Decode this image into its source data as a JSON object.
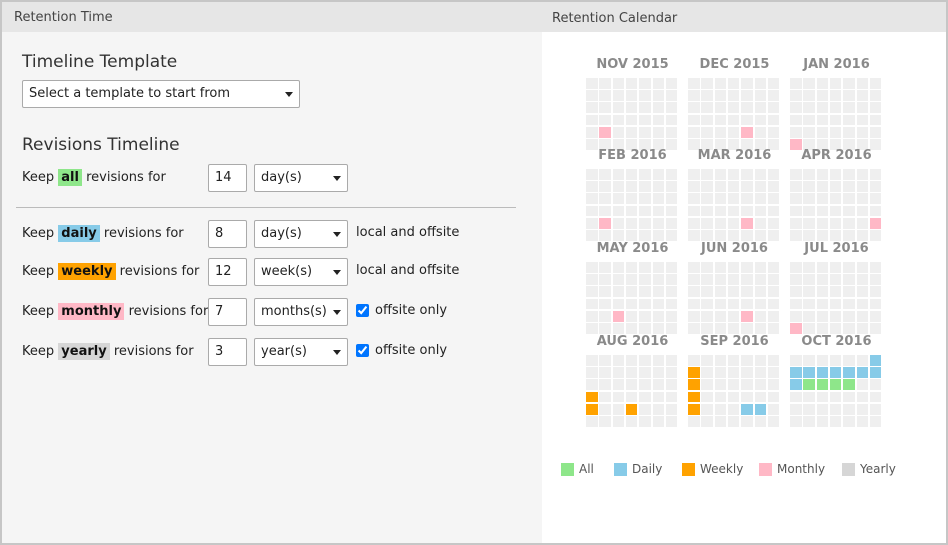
{
  "left_panel": {
    "title": "Retention Time",
    "template_heading": "Timeline Template",
    "template_select": "Select a template to start from",
    "revisions_heading": "Revisions Timeline",
    "rows": [
      {
        "prefix": "Keep",
        "tag": "all",
        "tag_color": "#8ee68a",
        "suffix": "revisions for",
        "amount": 14,
        "unit": "day(s)"
      },
      {
        "prefix": "Keep",
        "tag": "daily",
        "tag_color": "#87cbe8",
        "suffix": "revisions for",
        "amount": 8,
        "unit": "day(s)",
        "scope": "local and offsite",
        "checkbox": false
      },
      {
        "prefix": "Keep",
        "tag": "weekly",
        "tag_color": "#ffa200",
        "suffix": "revisions for",
        "amount": 12,
        "unit": "week(s)",
        "scope": "local and offsite",
        "checkbox": false
      },
      {
        "prefix": "Keep",
        "tag": "monthly",
        "tag_color": "#ffb8c6",
        "suffix": "revisions for",
        "amount": 7,
        "unit": "months(s)",
        "scope": "offsite only",
        "checkbox": true
      },
      {
        "prefix": "Keep",
        "tag": "yearly",
        "tag_color": "#d6d6d6",
        "suffix": "revisions for",
        "amount": 3,
        "unit": "year(s)",
        "scope": "offsite only",
        "checkbox": true
      }
    ]
  },
  "right_panel": {
    "title": "Retention Calendar",
    "months": [
      {
        "label": "NOV 2015",
        "marked": [
          {
            "day": 30,
            "color": "#ffb8c6"
          }
        ]
      },
      {
        "label": "DEC 2015",
        "marked": [
          {
            "day": 31,
            "color": "#ffb8c6"
          }
        ]
      },
      {
        "label": "JAN 2016",
        "marked": [
          {
            "day": 31,
            "color": "#ffb8c6"
          }
        ]
      },
      {
        "label": "FEB 2016",
        "marked": [
          {
            "day": 29,
            "color": "#ffb8c6"
          }
        ]
      },
      {
        "label": "MAR 2016",
        "marked": [
          {
            "day": 31,
            "color": "#ffb8c6"
          }
        ]
      },
      {
        "label": "APR 2016",
        "marked": [
          {
            "day": 30,
            "color": "#ffb8c6"
          }
        ]
      },
      {
        "label": "MAY 2016",
        "marked": [
          {
            "day": 31,
            "color": "#ffb8c6"
          }
        ]
      },
      {
        "label": "JUN 2016",
        "marked": [
          {
            "day": 30,
            "color": "#ffb8c6"
          }
        ]
      },
      {
        "label": "JUL 2016",
        "marked": [
          {
            "day": 31,
            "color": "#ffb8c6"
          }
        ]
      },
      {
        "label": "AUG 2016",
        "marked": [
          {
            "day": 21,
            "color": "#ffa200"
          },
          {
            "day": 28,
            "color": "#ffa200"
          },
          {
            "day": 31,
            "color": "#ffa200"
          }
        ]
      },
      {
        "label": "SEP 2016",
        "marked": [
          {
            "day": 4,
            "color": "#ffa200"
          },
          {
            "day": 11,
            "color": "#ffa200"
          },
          {
            "day": 18,
            "color": "#ffa200"
          },
          {
            "day": 25,
            "color": "#ffa200"
          },
          {
            "day": 29,
            "color": "#87cbe8"
          },
          {
            "day": 30,
            "color": "#87cbe8"
          }
        ]
      },
      {
        "label": "OCT 2016",
        "marked": [
          {
            "day": 1,
            "color": "#87cbe8"
          },
          {
            "day": 2,
            "color": "#87cbe8"
          },
          {
            "day": 3,
            "color": "#87cbe8"
          },
          {
            "day": 4,
            "color": "#87cbe8"
          },
          {
            "day": 5,
            "color": "#87cbe8"
          },
          {
            "day": 6,
            "color": "#87cbe8"
          },
          {
            "day": 7,
            "color": "#87cbe8"
          },
          {
            "day": 8,
            "color": "#87cbe8"
          },
          {
            "day": 9,
            "color": "#87cbe8"
          },
          {
            "day": 10,
            "color": "#8ee68a"
          },
          {
            "day": 11,
            "color": "#8ee68a"
          },
          {
            "day": 12,
            "color": "#8ee68a"
          },
          {
            "day": 13,
            "color": "#8ee68a"
          }
        ]
      }
    ],
    "legend": [
      {
        "label": "All",
        "color": "#8ee68a"
      },
      {
        "label": "Daily",
        "color": "#87cbe8"
      },
      {
        "label": "Weekly",
        "color": "#ffa200"
      },
      {
        "label": "Monthly",
        "color": "#ffb8c6"
      },
      {
        "label": "Yearly",
        "color": "#d6d6d6"
      }
    ]
  }
}
